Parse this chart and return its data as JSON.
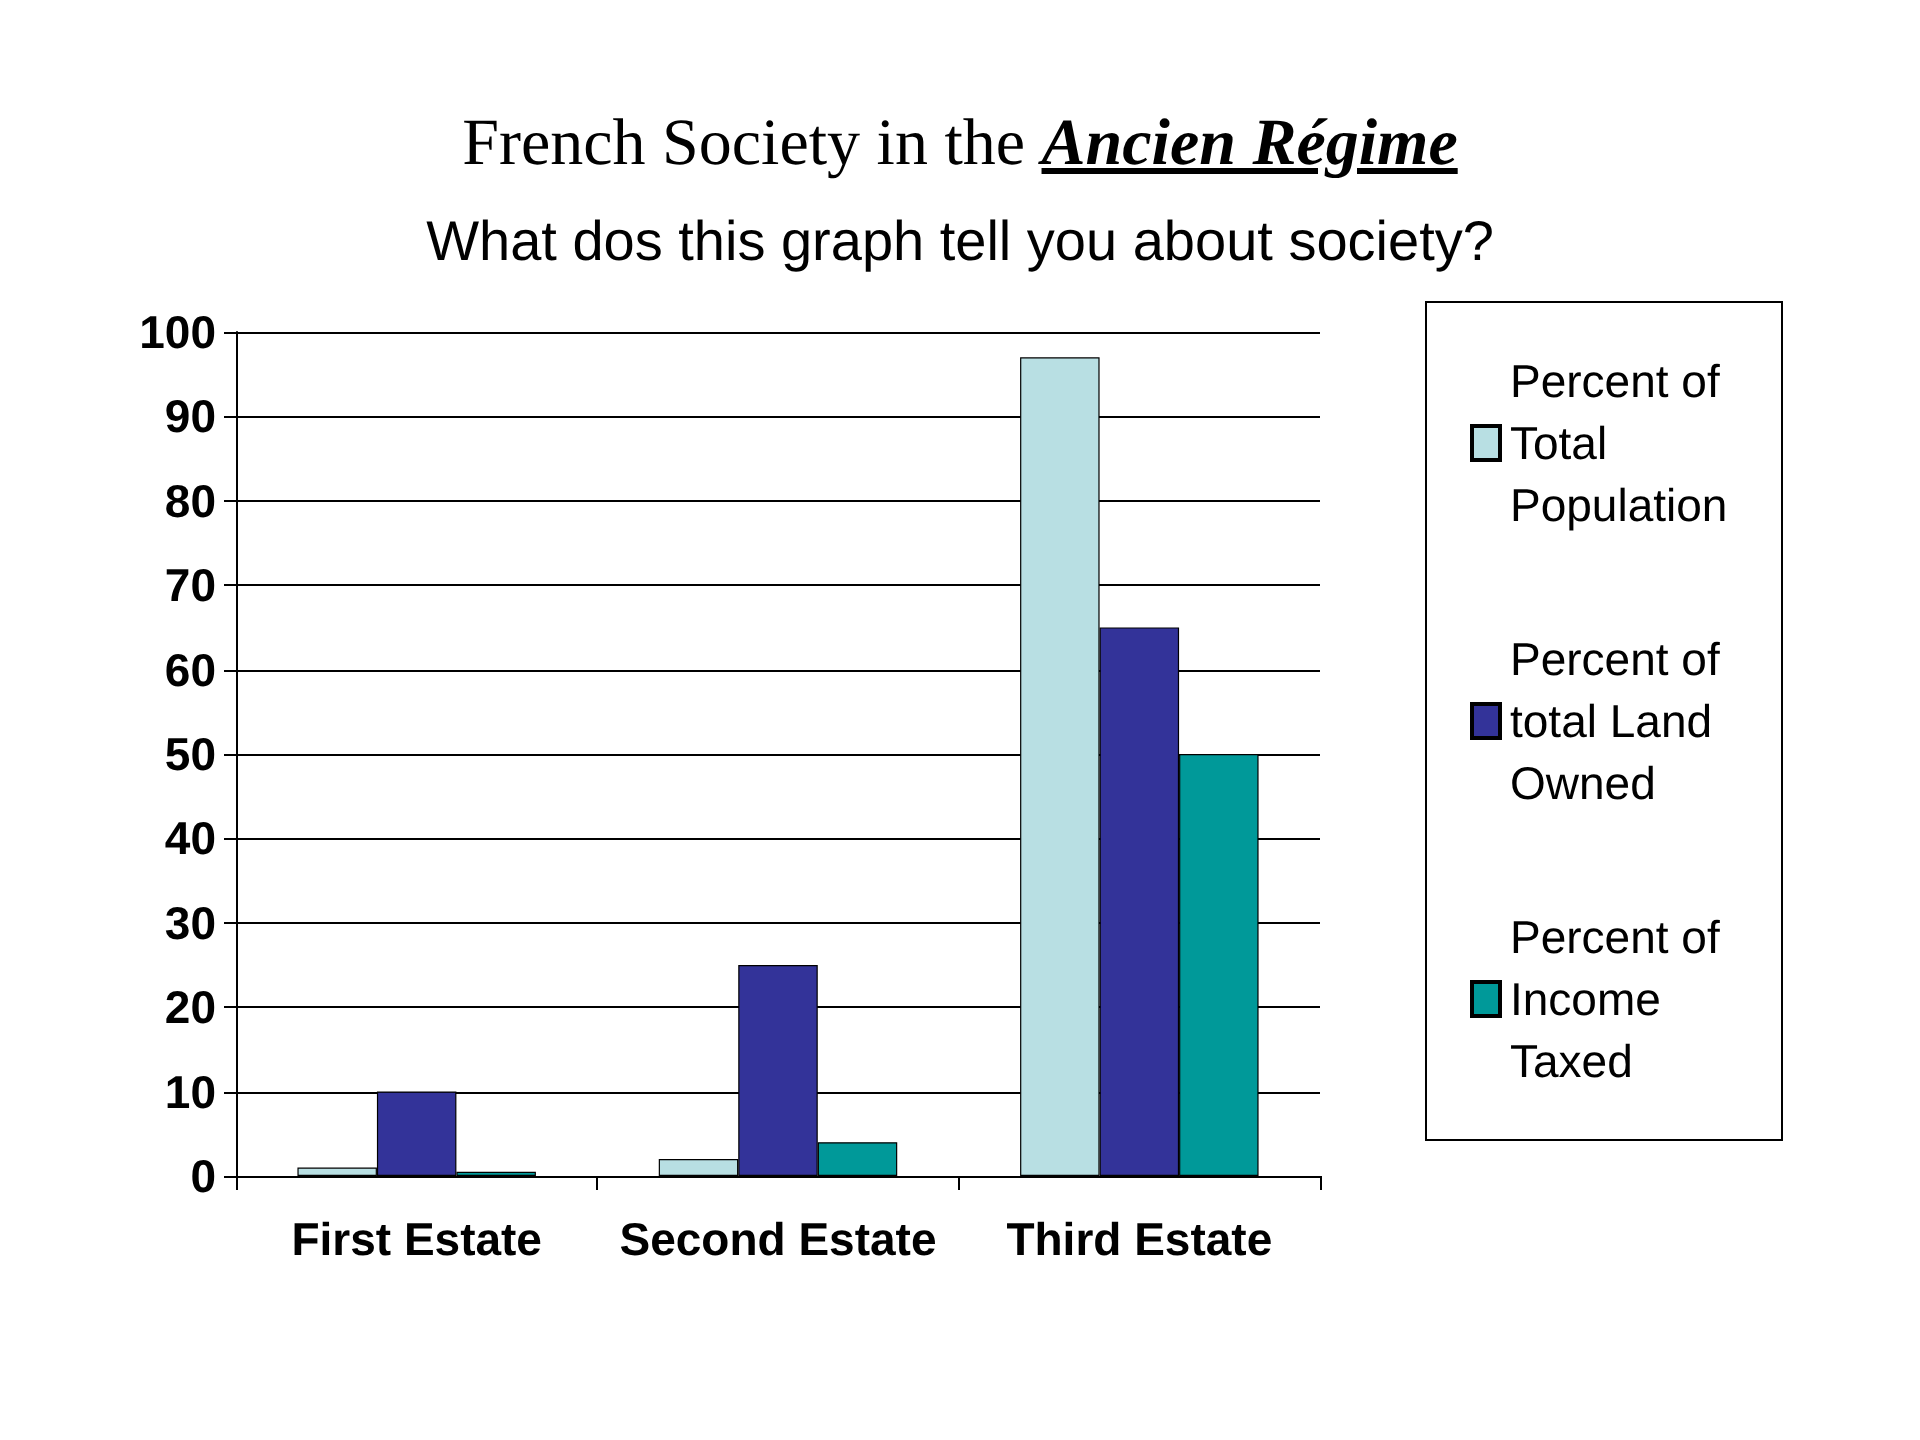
{
  "chart_data": {
    "type": "bar",
    "title": "French Society in the Ancien Régime",
    "subtitle": "What dos this graph tell you about society?",
    "categories": [
      "First Estate",
      "Second Estate",
      "Third Estate"
    ],
    "series": [
      {
        "name": "Percent of Total Population",
        "color": "#b8dfe3",
        "values": [
          1,
          2,
          97
        ]
      },
      {
        "name": "Percent of total Land Owned",
        "color": "#333399",
        "values": [
          10,
          25,
          65
        ]
      },
      {
        "name": "Percent of Income Taxed",
        "color": "#009999",
        "values": [
          0.5,
          4,
          50
        ]
      }
    ],
    "ylim": [
      0,
      100
    ],
    "yticks": [
      0,
      10,
      20,
      30,
      40,
      50,
      60,
      70,
      80,
      90,
      100
    ],
    "grid": "y",
    "legend": "right"
  }
}
